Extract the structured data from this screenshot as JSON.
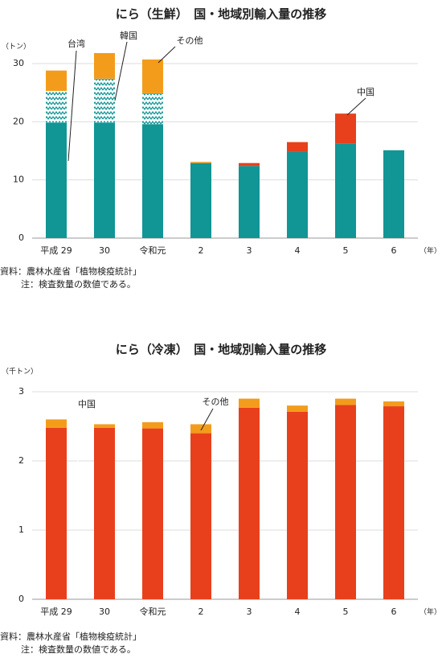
{
  "chart_data": [
    {
      "type": "bar",
      "stacked": true,
      "title": "にら（生鮮）　国・地域別輸入量の推移",
      "y_unit": "（トン）",
      "x_unit": "（年）",
      "source": "資料：農林水産省「植物検疫統計」",
      "note": "注：検査数量の数値である。",
      "categories": [
        "平成 29",
        "30",
        "令和元",
        "2",
        "3",
        "4",
        "5",
        "6"
      ],
      "series": [
        {
          "name": "台湾",
          "color": "#119595",
          "values": [
            19.8,
            19.8,
            19.6,
            12.9,
            12.4,
            14.8,
            16.2,
            15.1
          ]
        },
        {
          "name": "韓国",
          "color": "#119595",
          "hatch": true,
          "values": [
            5.5,
            7.6,
            5.3,
            null,
            null,
            null,
            null,
            null
          ]
        },
        {
          "name": "その他",
          "color": "#f39c1c",
          "values": [
            3.5,
            4.4,
            5.8,
            0.2,
            null,
            null,
            null,
            null
          ]
        },
        {
          "name": "中国",
          "color": "#e8401c",
          "values": [
            null,
            null,
            null,
            null,
            0.5,
            1.7,
            5.2,
            null
          ]
        }
      ],
      "ylim": [
        0,
        30
      ],
      "yticks": [
        0,
        10,
        20,
        30
      ],
      "grid": true
    },
    {
      "type": "bar",
      "stacked": true,
      "title": "にら（冷凍）　国・地域別輸入量の推移",
      "y_unit": "（千トン）",
      "x_unit": "（年）",
      "source": "資料：農林水産省「植物検疫統計」",
      "note": "注：検査数量の数値である。",
      "categories": [
        "平成 29",
        "30",
        "令和元",
        "2",
        "3",
        "4",
        "5",
        "6"
      ],
      "series": [
        {
          "name": "中国",
          "color": "#e8401c",
          "values": [
            2.48,
            2.48,
            2.47,
            2.4,
            2.77,
            2.71,
            2.81,
            2.79
          ]
        },
        {
          "name": "その他",
          "color": "#f39c1c",
          "values": [
            0.12,
            0.05,
            0.09,
            0.13,
            0.13,
            0.09,
            0.09,
            0.07
          ]
        }
      ],
      "ylim": [
        0,
        3
      ],
      "yticks": [
        0,
        1,
        2,
        3
      ],
      "grid": true
    }
  ]
}
